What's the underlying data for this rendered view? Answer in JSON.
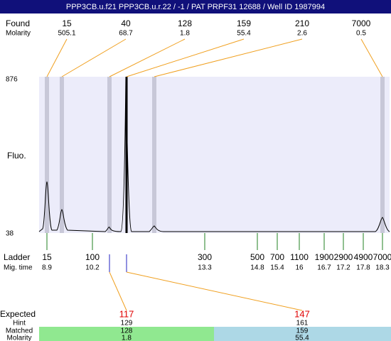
{
  "header": {
    "title": "PPP3CB.u.f21  PPP3CB.u.r.22 / -1 / PAT PRPF31 12688 / Well ID 1987994"
  },
  "found": {
    "label": "Found",
    "molarity_label": "Molarity",
    "peaks": [
      {
        "size": 15,
        "molarity": 505.1
      },
      {
        "size": 40,
        "molarity": 68.7
      },
      {
        "size": 128,
        "molarity": 1.8
      },
      {
        "size": 159,
        "molarity": 55.4
      },
      {
        "size": 210,
        "molarity": 2.6
      },
      {
        "size": 7000,
        "molarity": 0.5
      }
    ]
  },
  "axis": {
    "label": "Fluo.",
    "max": 876,
    "min": 38
  },
  "ladder": {
    "label": "Ladder",
    "mig_label": "Mig. time",
    "peaks": [
      {
        "size": 15,
        "time": 8.9
      },
      {
        "size": 100,
        "time": 10.2
      },
      {
        "size": 300,
        "time": 13.3
      },
      {
        "size": 500,
        "time": 14.8
      },
      {
        "size": 700,
        "time": 15.4
      },
      {
        "size": 1100,
        "time": 16
      },
      {
        "size": 1900,
        "time": 16.7
      },
      {
        "size": 2900,
        "time": 17.2
      },
      {
        "size": 4900,
        "time": 17.8
      },
      {
        "size": 7000,
        "time": 18.3
      }
    ]
  },
  "expected": {
    "label": "Expected",
    "hint_label": "Hint",
    "matched_label": "Matched",
    "molarity_label": "Molarity",
    "items": [
      {
        "expected": 117,
        "hint": 129,
        "matched": 128,
        "molarity": 1.8
      },
      {
        "expected": 147,
        "hint": 161,
        "matched": 159,
        "molarity": 55.4
      }
    ]
  }
}
